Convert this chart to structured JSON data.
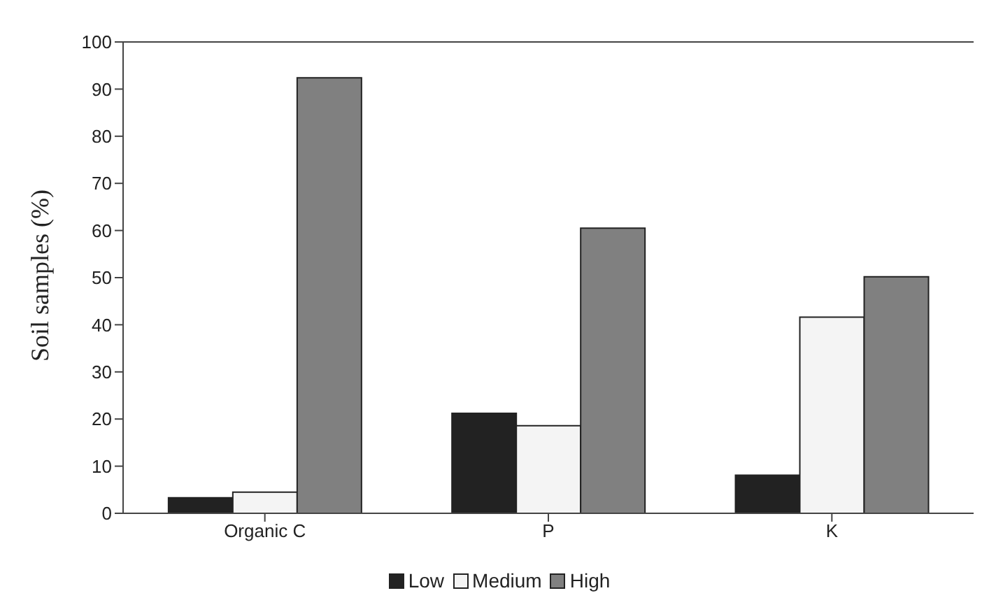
{
  "chart_data": {
    "type": "bar",
    "ylabel": "Soil samples (%)",
    "categories": [
      "Organic C",
      "P",
      "K"
    ],
    "series": [
      {
        "name": "Low",
        "color": "#222222",
        "values": [
          3.3,
          21.2,
          8.1
        ]
      },
      {
        "name": "Medium",
        "color": "#f4f4f4",
        "values": [
          4.5,
          18.6,
          41.6
        ]
      },
      {
        "name": "High",
        "color": "#808080",
        "values": [
          92.4,
          60.5,
          50.2
        ]
      }
    ],
    "ylim": [
      0,
      100
    ],
    "yticks": [
      0,
      10,
      20,
      30,
      40,
      50,
      60,
      70,
      80,
      90,
      100
    ],
    "grid": false,
    "legend": "bottom"
  }
}
